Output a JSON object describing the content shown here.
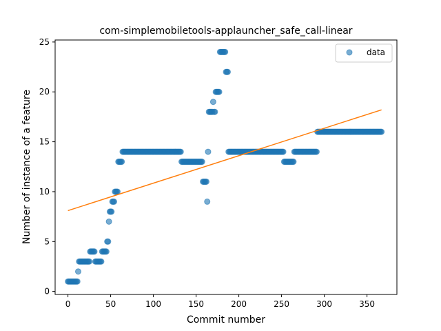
{
  "chart_data": {
    "type": "scatter",
    "title": "com-simplemobiletools-applauncher_safe_call-linear",
    "xlabel": "Commit number",
    "ylabel": "Number of instance of a feature",
    "xlim": [
      -15,
      385
    ],
    "ylim": [
      -0.3,
      25.2
    ],
    "xticks": [
      0,
      50,
      100,
      150,
      200,
      250,
      300,
      350
    ],
    "yticks": [
      0,
      5,
      10,
      15,
      20,
      25
    ],
    "grid": false,
    "legend": {
      "placement": "top-right",
      "entries": [
        "data"
      ]
    },
    "colors": {
      "data": "#1f77b4",
      "fit": "#ff7f0e"
    },
    "series": [
      {
        "name": "data",
        "kind": "scatter",
        "runs": [
          {
            "x_start": 0,
            "x_end": 11,
            "y": 1
          },
          {
            "x_start": 12,
            "x_end": 12,
            "y": 2
          },
          {
            "x_start": 13,
            "x_end": 25,
            "y": 3
          },
          {
            "x_start": 26,
            "x_end": 31,
            "y": 4
          },
          {
            "x_start": 32,
            "x_end": 39,
            "y": 3
          },
          {
            "x_start": 40,
            "x_end": 45,
            "y": 4
          },
          {
            "x_start": 46,
            "x_end": 47,
            "y": 5
          },
          {
            "x_start": 48,
            "x_end": 48,
            "y": 7
          },
          {
            "x_start": 49,
            "x_end": 51,
            "y": 8
          },
          {
            "x_start": 52,
            "x_end": 54,
            "y": 9
          },
          {
            "x_start": 55,
            "x_end": 58,
            "y": 10
          },
          {
            "x_start": 59,
            "x_end": 63,
            "y": 13
          },
          {
            "x_start": 64,
            "x_end": 132,
            "y": 14
          },
          {
            "x_start": 133,
            "x_end": 157,
            "y": 13
          },
          {
            "x_start": 158,
            "x_end": 162,
            "y": 11
          },
          {
            "x_start": 163,
            "x_end": 163,
            "y": 9
          },
          {
            "x_start": 164,
            "x_end": 164,
            "y": 14
          },
          {
            "x_start": 165,
            "x_end": 169,
            "y": 18
          },
          {
            "x_start": 170,
            "x_end": 170,
            "y": 19
          },
          {
            "x_start": 171,
            "x_end": 172,
            "y": 18
          },
          {
            "x_start": 173,
            "x_end": 177,
            "y": 20
          },
          {
            "x_start": 178,
            "x_end": 184,
            "y": 24
          },
          {
            "x_start": 185,
            "x_end": 187,
            "y": 22
          },
          {
            "x_start": 188,
            "x_end": 252,
            "y": 14
          },
          {
            "x_start": 253,
            "x_end": 264,
            "y": 13
          },
          {
            "x_start": 265,
            "x_end": 291,
            "y": 14
          },
          {
            "x_start": 292,
            "x_end": 367,
            "y": 16
          }
        ]
      },
      {
        "name": "fit",
        "kind": "line",
        "x": [
          0,
          367
        ],
        "y": [
          8.1,
          18.2
        ]
      }
    ]
  }
}
